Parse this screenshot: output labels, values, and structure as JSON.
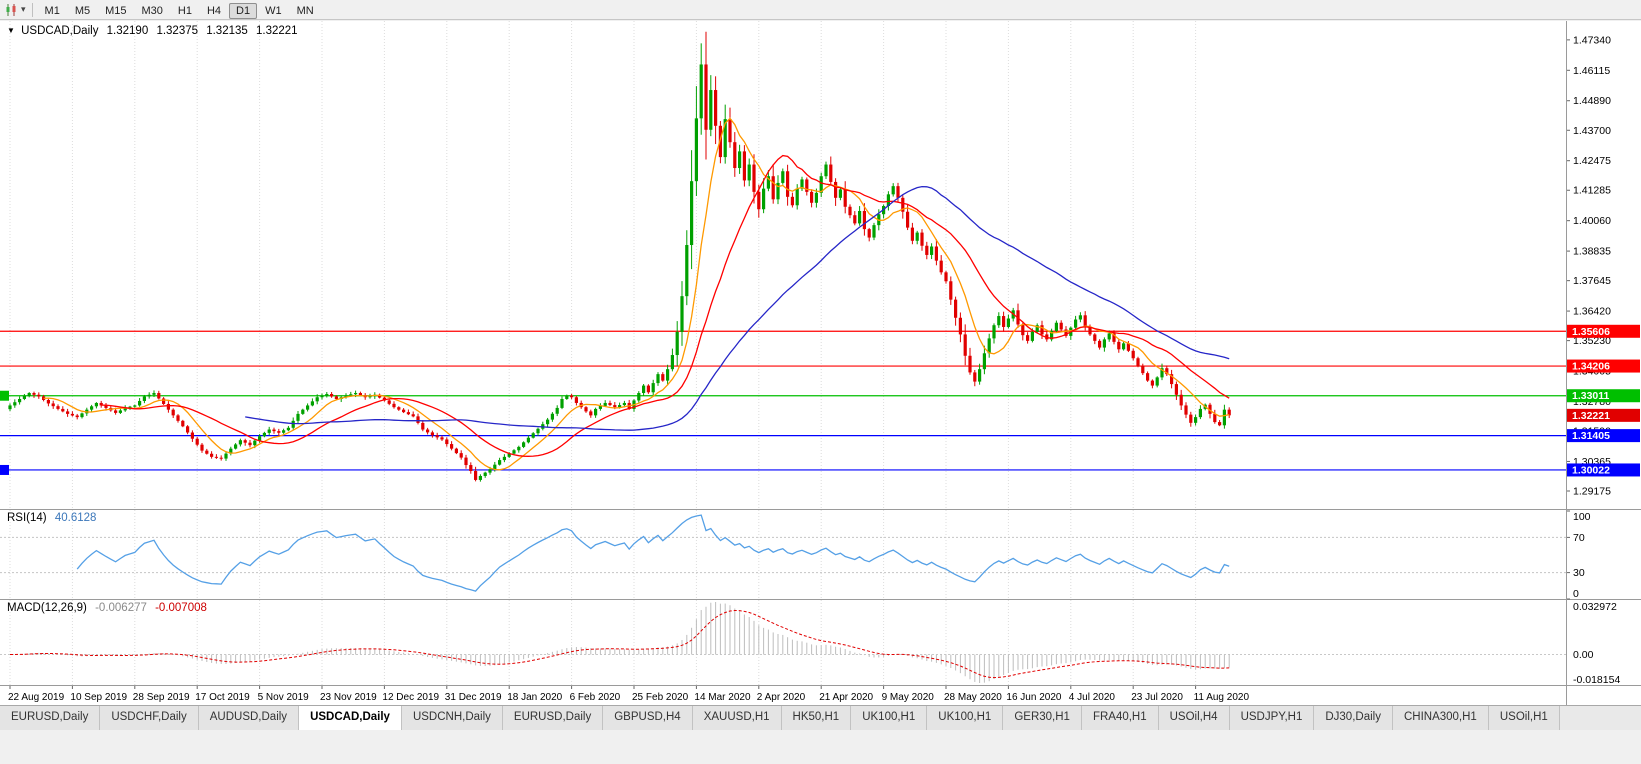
{
  "icons": {
    "collapse_triangle": "▼",
    "caret_down": "▾"
  },
  "toolbar": {
    "timeframes": [
      "M1",
      "M5",
      "M15",
      "M30",
      "H1",
      "H4",
      "D1",
      "W1",
      "MN"
    ],
    "active_timeframe": "D1"
  },
  "chart_header": {
    "symbol": "USDCAD,Daily",
    "open": "1.32190",
    "high": "1.32375",
    "low": "1.32135",
    "close": "1.32221"
  },
  "rsi_header": {
    "label": "RSI(14)",
    "value": "40.6128"
  },
  "macd_header": {
    "label": "MACD(12,26,9)",
    "value1": "-0.006277",
    "value2": "-0.007008"
  },
  "tabs": {
    "items": [
      "EURUSD,Daily",
      "USDCHF,Daily",
      "AUDUSD,Daily",
      "USDCAD,Daily",
      "USDCNH,Daily",
      "EURUSD,Daily",
      "GBPUSD,H4",
      "XAUUSD,H1",
      "HK50,H1",
      "UK100,H1",
      "UK100,H1",
      "GER30,H1",
      "FRA40,H1",
      "USOil,H4",
      "USDJPY,H1",
      "DJ30,Daily",
      "CHINA300,H1",
      "USOil,H1"
    ],
    "active_index": 3
  },
  "chart_data": {
    "type": "candlestick",
    "symbol": "USDCAD",
    "period": "Daily",
    "x_labels": [
      "22 Aug 2019",
      "10 Sep 2019",
      "28 Sep 2019",
      "17 Oct 2019",
      "5 Nov 2019",
      "23 Nov 2019",
      "12 Dec 2019",
      "31 Dec 2019",
      "18 Jan 2020",
      "6 Feb 2020",
      "25 Feb 2020",
      "14 Mar 2020",
      "2 Apr 2020",
      "21 Apr 2020",
      "9 May 2020",
      "28 May 2020",
      "16 Jun 2020",
      "4 Jul 2020",
      "23 Jul 2020",
      "11 Aug 2020"
    ],
    "bars_per_label": 13,
    "bar_count": 255,
    "price_axis": {
      "max": 1.481,
      "min": 1.2845,
      "labels": [
        "1.47340",
        "1.46115",
        "1.44890",
        "1.43700",
        "1.42475",
        "1.41285",
        "1.40060",
        "1.38835",
        "1.37645",
        "1.36420",
        "1.35230",
        "1.34005",
        "1.32780",
        "1.31590",
        "1.30365",
        "1.29175"
      ]
    },
    "up_color": "#00a000",
    "down_color": "#e10000",
    "moving_averages": [
      {
        "name": "ma-fast",
        "period": 8,
        "color": "#ff9900"
      },
      {
        "name": "ma-mid",
        "period": 20,
        "color": "#ff0000"
      },
      {
        "name": "ma-slow",
        "period": 50,
        "color": "#2626c8"
      }
    ],
    "h_lines": [
      {
        "value": 1.35606,
        "label": "1.35606",
        "color": "#ff0000",
        "left_handle": false
      },
      {
        "value": 1.34206,
        "label": "1.34206",
        "color": "#ff0000",
        "left_handle": false
      },
      {
        "value": 1.33011,
        "label": "1.33011",
        "color": "#00bf00",
        "left_handle": true
      },
      {
        "value": 1.31405,
        "label": "1.31405",
        "color": "#0000ff",
        "left_handle": false
      },
      {
        "value": 1.30022,
        "label": "1.30022",
        "color": "#0000ff",
        "left_handle": true
      }
    ],
    "current_price": {
      "value": 1.32221,
      "label": "1.32221",
      "box_color": "#e10000"
    },
    "rsi": {
      "period": 14,
      "color": "#55a0e6",
      "levels": [
        "100",
        "70",
        "30",
        "0"
      ],
      "level_values": [
        100,
        70,
        30,
        0
      ],
      "dotted_levels": [
        70,
        30
      ],
      "current_value": 40.6128
    },
    "macd": {
      "fast": 12,
      "slow": 26,
      "signal": 9,
      "hist_color": "#bdbdbd",
      "signal_color": "#e10000",
      "current_macd": -0.006277,
      "current_signal": -0.007008,
      "axis": {
        "max": 0.032972,
        "min": -0.018154,
        "labels": [
          "0.032972",
          "0.00",
          "-0.018154"
        ],
        "label_values": [
          0.032972,
          0,
          -0.018154
        ]
      }
    },
    "close_anchors": [
      [
        0,
        1.3262
      ],
      [
        2,
        1.3288
      ],
      [
        4,
        1.3312
      ],
      [
        6,
        1.3298
      ],
      [
        8,
        1.327
      ],
      [
        10,
        1.3248
      ],
      [
        12,
        1.3228
      ],
      [
        14,
        1.3215
      ],
      [
        16,
        1.3245
      ],
      [
        18,
        1.3272
      ],
      [
        20,
        1.3252
      ],
      [
        22,
        1.3232
      ],
      [
        24,
        1.3252
      ],
      [
        26,
        1.3262
      ],
      [
        28,
        1.3298
      ],
      [
        30,
        1.3312
      ],
      [
        32,
        1.3268
      ],
      [
        34,
        1.3222
      ],
      [
        36,
        1.3178
      ],
      [
        38,
        1.3128
      ],
      [
        40,
        1.308
      ],
      [
        42,
        1.3055
      ],
      [
        44,
        1.3048
      ],
      [
        46,
        1.3088
      ],
      [
        48,
        1.3122
      ],
      [
        50,
        1.3102
      ],
      [
        52,
        1.3138
      ],
      [
        54,
        1.3165
      ],
      [
        56,
        1.3152
      ],
      [
        58,
        1.3172
      ],
      [
        60,
        1.3228
      ],
      [
        62,
        1.3262
      ],
      [
        64,
        1.3295
      ],
      [
        66,
        1.3308
      ],
      [
        68,
        1.3288
      ],
      [
        70,
        1.3302
      ],
      [
        72,
        1.3312
      ],
      [
        74,
        1.3295
      ],
      [
        76,
        1.3305
      ],
      [
        78,
        1.3282
      ],
      [
        80,
        1.3255
      ],
      [
        82,
        1.3235
      ],
      [
        84,
        1.3218
      ],
      [
        86,
        1.3165
      ],
      [
        88,
        1.3142
      ],
      [
        90,
        1.3125
      ],
      [
        92,
        1.3088
      ],
      [
        94,
        1.3052
      ],
      [
        95,
        1.3022
      ],
      [
        96,
        1.2998
      ],
      [
        97,
        1.2962
      ],
      [
        98,
        1.2978
      ],
      [
        100,
        1.3005
      ],
      [
        102,
        1.3042
      ],
      [
        104,
        1.3068
      ],
      [
        106,
        1.3095
      ],
      [
        108,
        1.3132
      ],
      [
        110,
        1.3168
      ],
      [
        112,
        1.3205
      ],
      [
        114,
        1.3252
      ],
      [
        115,
        1.3288
      ],
      [
        116,
        1.3302
      ],
      [
        117,
        1.3295
      ],
      [
        118,
        1.3272
      ],
      [
        120,
        1.3238
      ],
      [
        121,
        1.3222
      ],
      [
        122,
        1.3248
      ],
      [
        124,
        1.3272
      ],
      [
        126,
        1.3255
      ],
      [
        128,
        1.3272
      ],
      [
        129,
        1.3248
      ],
      [
        130,
        1.3282
      ],
      [
        131,
        1.3312
      ],
      [
        132,
        1.3342
      ],
      [
        133,
        1.3315
      ],
      [
        134,
        1.3352
      ],
      [
        135,
        1.3388
      ],
      [
        136,
        1.3362
      ],
      [
        137,
        1.3408
      ],
      [
        138,
        1.3465
      ],
      [
        139,
        1.3558
      ],
      [
        140,
        1.3702
      ],
      [
        141,
        1.3908
      ],
      [
        142,
        1.4165
      ],
      [
        143,
        1.4418
      ],
      [
        144,
        1.4635
      ],
      [
        145,
        1.4372
      ],
      [
        146,
        1.4532
      ],
      [
        147,
        1.4388
      ],
      [
        148,
        1.4262
      ],
      [
        149,
        1.4415
      ],
      [
        150,
        1.4322
      ],
      [
        151,
        1.4218
      ],
      [
        152,
        1.4285
      ],
      [
        153,
        1.4168
      ],
      [
        154,
        1.4232
      ],
      [
        155,
        1.4122
      ],
      [
        156,
        1.4052
      ],
      [
        157,
        1.4135
      ],
      [
        158,
        1.4185
      ],
      [
        159,
        1.4092
      ],
      [
        160,
        1.4158
      ],
      [
        161,
        1.4205
      ],
      [
        162,
        1.4102
      ],
      [
        163,
        1.4068
      ],
      [
        164,
        1.4135
      ],
      [
        165,
        1.4172
      ],
      [
        166,
        1.4122
      ],
      [
        167,
        1.4078
      ],
      [
        168,
        1.4118
      ],
      [
        169,
        1.4185
      ],
      [
        170,
        1.4232
      ],
      [
        171,
        1.4162
      ],
      [
        172,
        1.4098
      ],
      [
        173,
        1.4132
      ],
      [
        174,
        1.4062
      ],
      [
        175,
        1.4028
      ],
      [
        176,
        1.3995
      ],
      [
        177,
        1.4045
      ],
      [
        178,
        1.3972
      ],
      [
        179,
        1.3938
      ],
      [
        180,
        1.3988
      ],
      [
        181,
        1.4032
      ],
      [
        182,
        1.4065
      ],
      [
        183,
        1.4112
      ],
      [
        184,
        1.4145
      ],
      [
        185,
        1.4098
      ],
      [
        186,
        1.4042
      ],
      [
        187,
        1.3978
      ],
      [
        188,
        1.3925
      ],
      [
        189,
        1.3958
      ],
      [
        190,
        1.3905
      ],
      [
        191,
        1.3868
      ],
      [
        192,
        1.3902
      ],
      [
        193,
        1.3845
      ],
      [
        194,
        1.3798
      ],
      [
        195,
        1.3762
      ],
      [
        196,
        1.3688
      ],
      [
        197,
        1.3615
      ],
      [
        198,
        1.3548
      ],
      [
        199,
        1.3462
      ],
      [
        200,
        1.3395
      ],
      [
        201,
        1.3358
      ],
      [
        202,
        1.3408
      ],
      [
        203,
        1.3472
      ],
      [
        204,
        1.3532
      ],
      [
        205,
        1.3585
      ],
      [
        206,
        1.3622
      ],
      [
        207,
        1.3578
      ],
      [
        208,
        1.3612
      ],
      [
        209,
        1.3645
      ],
      [
        210,
        1.3588
      ],
      [
        211,
        1.3545
      ],
      [
        212,
        1.3522
      ],
      [
        213,
        1.3558
      ],
      [
        214,
        1.3585
      ],
      [
        215,
        1.3548
      ],
      [
        216,
        1.3528
      ],
      [
        217,
        1.3562
      ],
      [
        218,
        1.3595
      ],
      [
        219,
        1.3568
      ],
      [
        220,
        1.3542
      ],
      [
        221,
        1.3575
      ],
      [
        222,
        1.3608
      ],
      [
        223,
        1.3625
      ],
      [
        224,
        1.3578
      ],
      [
        225,
        1.3548
      ],
      [
        226,
        1.3522
      ],
      [
        227,
        1.3495
      ],
      [
        228,
        1.3528
      ],
      [
        229,
        1.3552
      ],
      [
        230,
        1.3518
      ],
      [
        231,
        1.3488
      ],
      [
        232,
        1.3512
      ],
      [
        233,
        1.3482
      ],
      [
        234,
        1.3452
      ],
      [
        235,
        1.3422
      ],
      [
        236,
        1.3392
      ],
      [
        237,
        1.3362
      ],
      [
        238,
        1.3342
      ],
      [
        239,
        1.3375
      ],
      [
        240,
        1.3412
      ],
      [
        241,
        1.3388
      ],
      [
        242,
        1.3348
      ],
      [
        243,
        1.3305
      ],
      [
        244,
        1.3262
      ],
      [
        245,
        1.3225
      ],
      [
        246,
        1.3192
      ],
      [
        247,
        1.3215
      ],
      [
        248,
        1.3248
      ],
      [
        249,
        1.3265
      ],
      [
        250,
        1.3228
      ],
      [
        251,
        1.3195
      ],
      [
        252,
        1.3182
      ],
      [
        253,
        1.3245
      ],
      [
        254,
        1.32221
      ]
    ]
  }
}
